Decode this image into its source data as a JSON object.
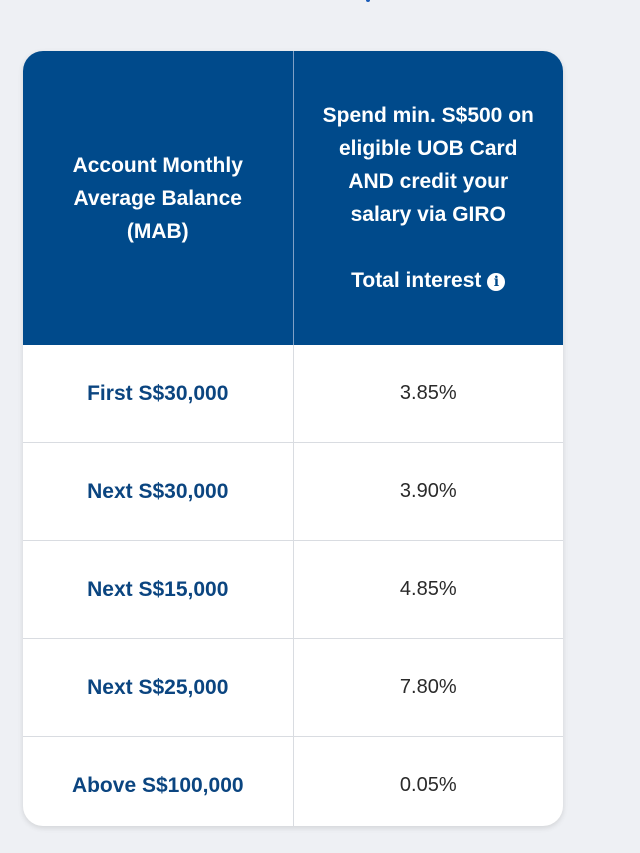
{
  "table": {
    "header": {
      "col1_lines": [
        "Account Monthly",
        "Average Balance",
        "(MAB)"
      ],
      "col2_lines": [
        "Spend min. S$500 on",
        "eligible UOB Card",
        "AND credit your",
        "salary via GIRO"
      ],
      "col2_total_label": "Total interest",
      "info_icon": "i"
    },
    "rows": [
      {
        "tier": "First S$30,000",
        "rate": "3.85%"
      },
      {
        "tier": "Next S$30,000",
        "rate": "3.90%"
      },
      {
        "tier": "Next S$15,000",
        "rate": "4.85%"
      },
      {
        "tier": "Next S$25,000",
        "rate": "7.80%"
      },
      {
        "tier": "Above S$100,000",
        "rate": "0.05%"
      }
    ]
  },
  "colors": {
    "header_bg": "#004a8b",
    "tier_text": "#0b4580",
    "page_bg": "#eef0f4"
  }
}
